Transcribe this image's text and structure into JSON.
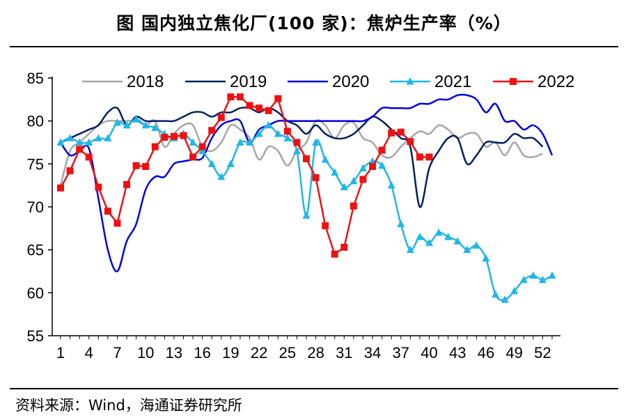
{
  "title": "图  国内独立焦化厂(100 家)：焦炉生产率（%）",
  "source": "资料来源：Wind，海通证券研究所",
  "chart_data": {
    "type": "line",
    "title": "国内独立焦化厂(100 家)：焦炉生产率（%）",
    "xlabel": "",
    "ylabel": "",
    "ylim": [
      55,
      85
    ],
    "xlim": [
      1,
      53
    ],
    "yticks": [
      55,
      60,
      65,
      70,
      75,
      80,
      85
    ],
    "xticks": [
      1,
      4,
      7,
      10,
      13,
      16,
      19,
      22,
      25,
      28,
      31,
      34,
      37,
      40,
      43,
      46,
      49,
      52
    ],
    "legend_position": "top",
    "series": [
      {
        "name": "2018",
        "color": "#a6a6a6",
        "marker": "none",
        "x": [
          1,
          2,
          3,
          4,
          5,
          6,
          7,
          8,
          9,
          10,
          11,
          12,
          13,
          14,
          15,
          16,
          17,
          18,
          19,
          20,
          21,
          22,
          23,
          24,
          25,
          26,
          27,
          28,
          29,
          30,
          31,
          32,
          33,
          34,
          35,
          36,
          37,
          38,
          39,
          40,
          41,
          42,
          43,
          44,
          45,
          46,
          47,
          48,
          49,
          50,
          51,
          52
        ],
        "values": [
          72.5,
          76.5,
          77.5,
          78.5,
          79.5,
          80,
          80,
          80,
          80,
          79.5,
          80,
          77,
          78.5,
          79.5,
          79.5,
          77,
          76.5,
          77.5,
          79.5,
          79,
          78,
          75.5,
          77,
          76.5,
          74.8,
          76.5,
          77.5,
          80,
          79.5,
          78,
          79.5,
          79.8,
          78,
          77.5,
          76,
          75.8,
          77,
          78,
          78.8,
          78.5,
          79.5,
          79,
          78,
          78.5,
          78.5,
          77,
          77.5,
          76,
          77.5,
          76,
          75.8,
          76.2
        ]
      },
      {
        "name": "2019",
        "color": "#002060",
        "marker": "none",
        "x": [
          1,
          2,
          3,
          4,
          5,
          6,
          7,
          8,
          9,
          10,
          11,
          12,
          13,
          14,
          15,
          16,
          17,
          18,
          19,
          20,
          21,
          22,
          23,
          24,
          25,
          26,
          27,
          28,
          29,
          30,
          31,
          32,
          33,
          34,
          35,
          36,
          37,
          38,
          39,
          40,
          41,
          42,
          43,
          44,
          45,
          46,
          47,
          48,
          49,
          50,
          51,
          52
        ],
        "values": [
          77.5,
          78,
          78.5,
          79,
          79.5,
          81,
          81.5,
          79.5,
          80.5,
          80,
          80,
          80,
          80,
          80.5,
          81,
          81,
          80.5,
          81,
          81,
          81.5,
          81.5,
          81,
          81.5,
          81,
          80,
          79.5,
          78.5,
          79.5,
          78.5,
          78,
          78,
          78.5,
          79.5,
          80.5,
          80,
          79,
          78,
          77,
          70,
          74.5,
          76.5,
          78,
          78,
          75,
          76,
          77.5,
          77.5,
          77.5,
          78.5,
          78,
          78,
          77
        ]
      },
      {
        "name": "2020",
        "color": "#0000dd",
        "marker": "none",
        "x": [
          1,
          2,
          3,
          4,
          5,
          6,
          7,
          8,
          9,
          10,
          11,
          12,
          13,
          14,
          15,
          16,
          17,
          18,
          19,
          20,
          21,
          22,
          23,
          24,
          25,
          26,
          27,
          28,
          29,
          30,
          31,
          32,
          33,
          34,
          35,
          36,
          37,
          38,
          39,
          40,
          41,
          42,
          43,
          44,
          45,
          46,
          47,
          48,
          49,
          50,
          51,
          52,
          53
        ],
        "values": [
          77.5,
          76,
          76.5,
          76.8,
          71,
          65,
          62.5,
          66,
          68,
          72,
          73.5,
          73.5,
          75,
          75.3,
          75.5,
          75.7,
          78,
          79.5,
          80,
          80,
          77.5,
          79,
          79.5,
          80,
          80,
          80,
          80,
          80,
          80,
          80,
          80,
          80,
          80,
          80.5,
          81.5,
          81.5,
          81.5,
          81.5,
          82,
          82,
          82.5,
          82.5,
          83,
          83,
          82.5,
          81,
          82,
          80,
          80,
          79,
          79.5,
          78.5,
          76
        ]
      },
      {
        "name": "2021",
        "color": "#1fb6e8",
        "marker": "triangle",
        "x": [
          1,
          2,
          3,
          4,
          5,
          6,
          7,
          8,
          9,
          10,
          11,
          12,
          13,
          14,
          15,
          16,
          17,
          18,
          19,
          20,
          21,
          22,
          23,
          24,
          25,
          26,
          27,
          28,
          29,
          30,
          31,
          32,
          33,
          34,
          35,
          36,
          37,
          38,
          39,
          40,
          41,
          42,
          43,
          44,
          45,
          46,
          47,
          48,
          49,
          50,
          51,
          52,
          53
        ],
        "values": [
          77.5,
          78,
          77.5,
          77.5,
          78,
          78,
          79.8,
          79.5,
          80.2,
          79.5,
          79.2,
          78.5,
          78,
          78.5,
          77.5,
          76.5,
          75,
          73.5,
          75,
          77.5,
          77.5,
          78.5,
          79.5,
          78.5,
          78,
          76.5,
          69,
          77.5,
          75.5,
          74,
          72.3,
          73,
          74.5,
          75.3,
          74.8,
          72.5,
          68,
          65,
          66.5,
          65.8,
          67,
          66.5,
          66,
          65,
          65.5,
          64,
          59.8,
          59.2,
          60.2,
          61.5,
          62,
          61.5,
          62
        ]
      },
      {
        "name": "2022",
        "color": "#ee1111",
        "marker": "square",
        "x": [
          1,
          2,
          3,
          4,
          5,
          6,
          7,
          8,
          9,
          10,
          11,
          12,
          13,
          14,
          15,
          16,
          17,
          18,
          19,
          20,
          21,
          22,
          23,
          24,
          25,
          26,
          27,
          28,
          29,
          30,
          31,
          32,
          33,
          34,
          35,
          36,
          37,
          38,
          39,
          40
        ],
        "values": [
          72.2,
          74.2,
          76.7,
          75.8,
          72.3,
          69.5,
          68.1,
          72.6,
          74.8,
          74.7,
          77,
          78.1,
          78.2,
          78.3,
          75.8,
          77,
          78.9,
          80.4,
          82.8,
          82.8,
          81.8,
          81.5,
          81.2,
          82.6,
          78.8,
          77.5,
          75.6,
          73.4,
          67.8,
          64.5,
          65.3,
          70.1,
          73.2,
          74.7,
          76.6,
          78.6,
          78.7,
          77.6,
          75.8,
          75.8
        ]
      }
    ]
  }
}
